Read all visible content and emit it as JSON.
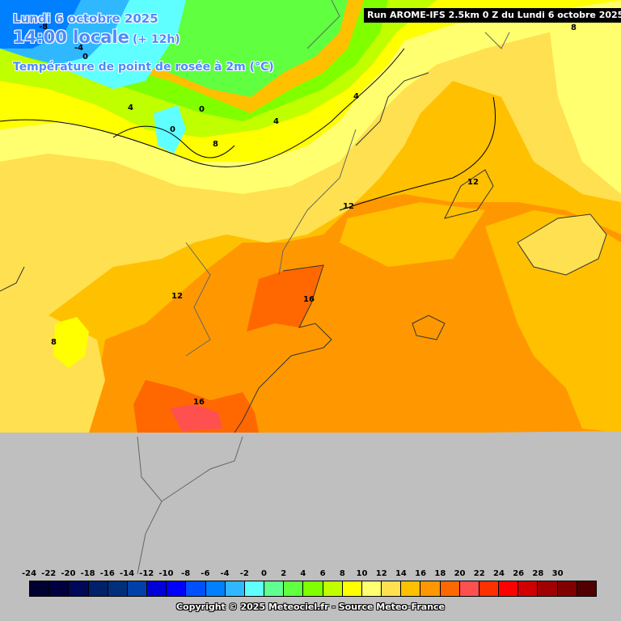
{
  "title": {
    "date": "Lundi 6 octobre 2025",
    "hour": "14:00 locale",
    "offset": "(+ 12h)",
    "parameter": "Température de point de rosée à 2m (°C)"
  },
  "run_banner": "Run AROME-IFS 2.5km 0 Z du Lundi 6 octobre 2025",
  "copyright": "Copyright © 2025 Meteociel.fr - Source Meteo-France",
  "isolines": [
    "-8",
    "-4",
    "0",
    "4",
    "0",
    "0",
    "4",
    "8",
    "4",
    "12",
    "12",
    "12",
    "8",
    "16",
    "16",
    "8"
  ],
  "legend": {
    "ticks": [
      "-24",
      "-22",
      "-20",
      "-18",
      "-16",
      "-14",
      "-12",
      "-10",
      "-8",
      "-6",
      "-4",
      "-2",
      "0",
      "2",
      "4",
      "6",
      "8",
      "10",
      "12",
      "14",
      "16",
      "18",
      "20",
      "22",
      "24",
      "26",
      "28",
      "30"
    ],
    "colors": [
      "#000030",
      "#000040",
      "#000858",
      "#00206a",
      "#00307c",
      "#0040a8",
      "#0000d8",
      "#0000ff",
      "#0050ff",
      "#0080ff",
      "#30b8ff",
      "#60ffff",
      "#60ff90",
      "#60ff40",
      "#80ff00",
      "#c0ff00",
      "#ffff00",
      "#ffff70",
      "#ffe050",
      "#ffc000",
      "#ff9800",
      "#ff6800",
      "#ff5050",
      "#ff3000",
      "#ff0000",
      "#d00000",
      "#a00000",
      "#800000",
      "#500000"
    ]
  },
  "colors": {
    "no_data": "#bfbfbf",
    "title_text": "#4a8cff"
  }
}
